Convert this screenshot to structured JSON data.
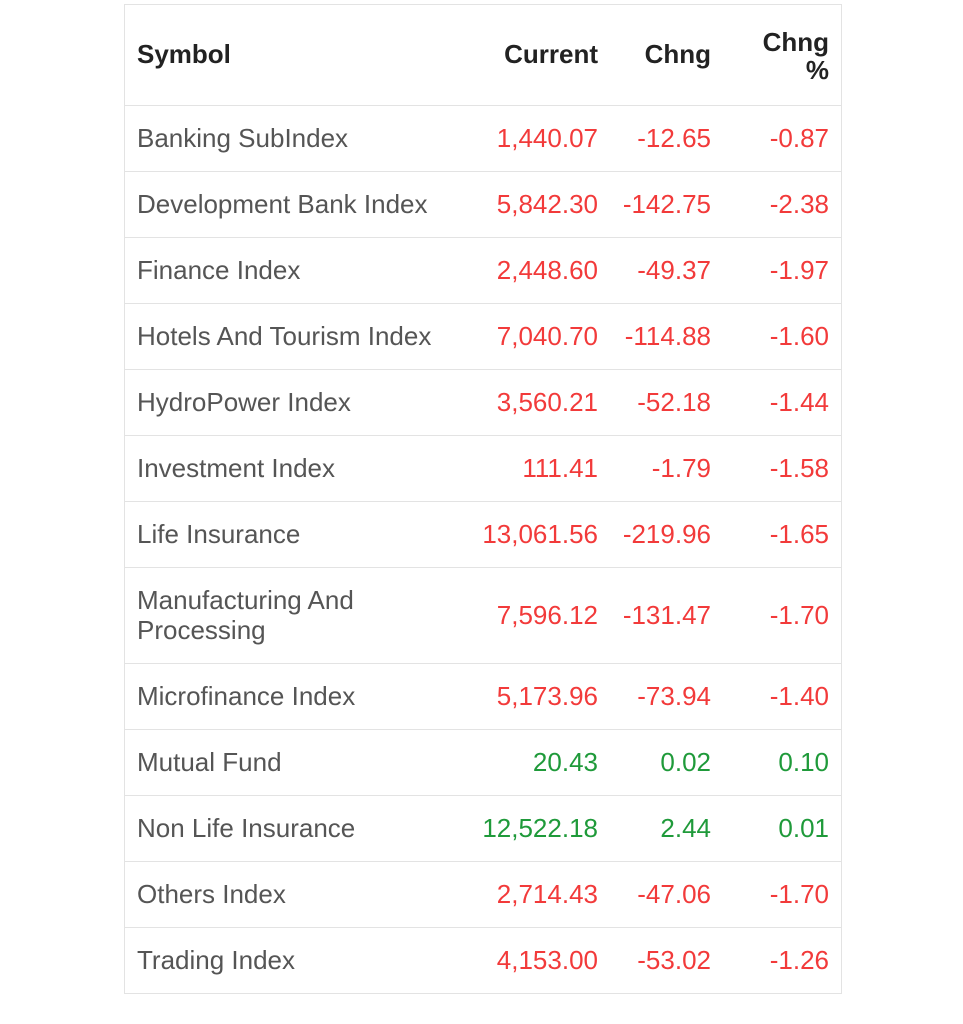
{
  "table": {
    "headers": {
      "symbol": "Symbol",
      "current": "Current",
      "chng": "Chng",
      "chng_pct_top": "Chng",
      "chng_pct_bottom": "%"
    },
    "rows": [
      {
        "symbol": "Banking SubIndex",
        "current": "1,440.07",
        "chng": "-12.65",
        "pct": "-0.87",
        "trend": "neg"
      },
      {
        "symbol": "Development Bank Index",
        "current": "5,842.30",
        "chng": "-142.75",
        "pct": "-2.38",
        "trend": "neg"
      },
      {
        "symbol": "Finance Index",
        "current": "2,448.60",
        "chng": "-49.37",
        "pct": "-1.97",
        "trend": "neg"
      },
      {
        "symbol": "Hotels And Tourism Index",
        "current": "7,040.70",
        "chng": "-114.88",
        "pct": "-1.60",
        "trend": "neg"
      },
      {
        "symbol": "HydroPower Index",
        "current": "3,560.21",
        "chng": "-52.18",
        "pct": "-1.44",
        "trend": "neg"
      },
      {
        "symbol": "Investment Index",
        "current": "111.41",
        "chng": "-1.79",
        "pct": "-1.58",
        "trend": "neg"
      },
      {
        "symbol": "Life Insurance",
        "current": "13,061.56",
        "chng": "-219.96",
        "pct": "-1.65",
        "trend": "neg"
      },
      {
        "symbol": "Manufacturing And Processing",
        "current": "7,596.12",
        "chng": "-131.47",
        "pct": "-1.70",
        "trend": "neg"
      },
      {
        "symbol": "Microfinance Index",
        "current": "5,173.96",
        "chng": "-73.94",
        "pct": "-1.40",
        "trend": "neg"
      },
      {
        "symbol": "Mutual Fund",
        "current": "20.43",
        "chng": "0.02",
        "pct": "0.10",
        "trend": "pos"
      },
      {
        "symbol": "Non Life Insurance",
        "current": "12,522.18",
        "chng": "2.44",
        "pct": "0.01",
        "trend": "pos"
      },
      {
        "symbol": "Others Index",
        "current": "2,714.43",
        "chng": "-47.06",
        "pct": "-1.70",
        "trend": "neg"
      },
      {
        "symbol": "Trading Index",
        "current": "4,153.00",
        "chng": "-53.02",
        "pct": "-1.26",
        "trend": "neg"
      }
    ]
  },
  "colors": {
    "negative": "#f23a3a",
    "positive": "#1f9a3a",
    "text": "#555555",
    "header_text": "#222222",
    "border": "#e3e3e3"
  }
}
